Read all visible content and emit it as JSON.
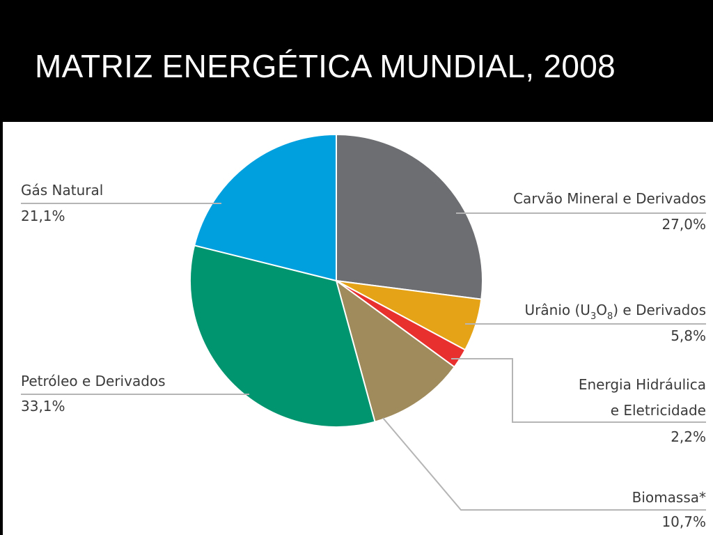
{
  "header": {
    "title": "MATRIZ ENERGÉTICA MUNDIAL, 2008"
  },
  "chart_data": {
    "type": "pie",
    "title": "MATRIZ ENERGÉTICA MUNDIAL, 2008",
    "unit": "%",
    "slices": [
      {
        "label": "Carvão Mineral e Derivados",
        "value": 27.0,
        "value_label": "27,0%",
        "color": "#6d6e71"
      },
      {
        "label": "Urânio (U3O8) e Derivados",
        "value": 5.8,
        "value_label": "5,8%",
        "color": "#e5a317"
      },
      {
        "label": "Energia Hidráulica e Eletricidade",
        "label_lines": [
          "Energia Hidráulica",
          "e Eletricidade"
        ],
        "value": 2.2,
        "value_label": "2,2%",
        "color": "#e8312f"
      },
      {
        "label": "Biomassa*",
        "value": 10.7,
        "value_label": "10,7%",
        "color": "#a08b5d"
      },
      {
        "label": "Petróleo e Derivados",
        "value": 33.1,
        "value_label": "33,1%",
        "color": "#00956f"
      },
      {
        "label": "Gás Natural",
        "value": 21.1,
        "value_label": "21,1%",
        "color": "#00a0df"
      }
    ]
  }
}
